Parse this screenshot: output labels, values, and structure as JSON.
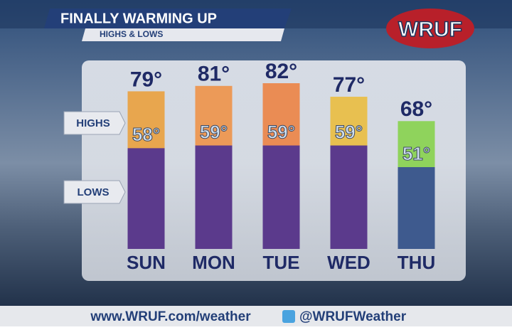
{
  "chart_data": {
    "type": "bar",
    "title": "FINALLY WARMING UP",
    "subtitle": "HIGHS & LOWS",
    "categories": [
      "SUN",
      "MON",
      "TUE",
      "WED",
      "THU"
    ],
    "series": [
      {
        "name": "HIGHS",
        "values": [
          79,
          81,
          82,
          77,
          68
        ],
        "value_labels": [
          "79°",
          "81°",
          "82°",
          "77°",
          "68°"
        ],
        "colors": [
          "#e8a64e",
          "#ec9a58",
          "#ea8c54",
          "#e8c050",
          "#8fd35c"
        ]
      },
      {
        "name": "LOWS",
        "values": [
          58,
          59,
          59,
          59,
          51
        ],
        "value_labels": [
          "58°",
          "59°",
          "59°",
          "59°",
          "51°"
        ],
        "colors": [
          "#5b3a8c",
          "#5b3a8c",
          "#5b3a8c",
          "#5b3a8c",
          "#3e5a8e"
        ]
      }
    ]
  },
  "logo": "WRUF",
  "footer": {
    "website": "www.WRUF.com/weather",
    "twitter": "@WRUFWeather"
  }
}
